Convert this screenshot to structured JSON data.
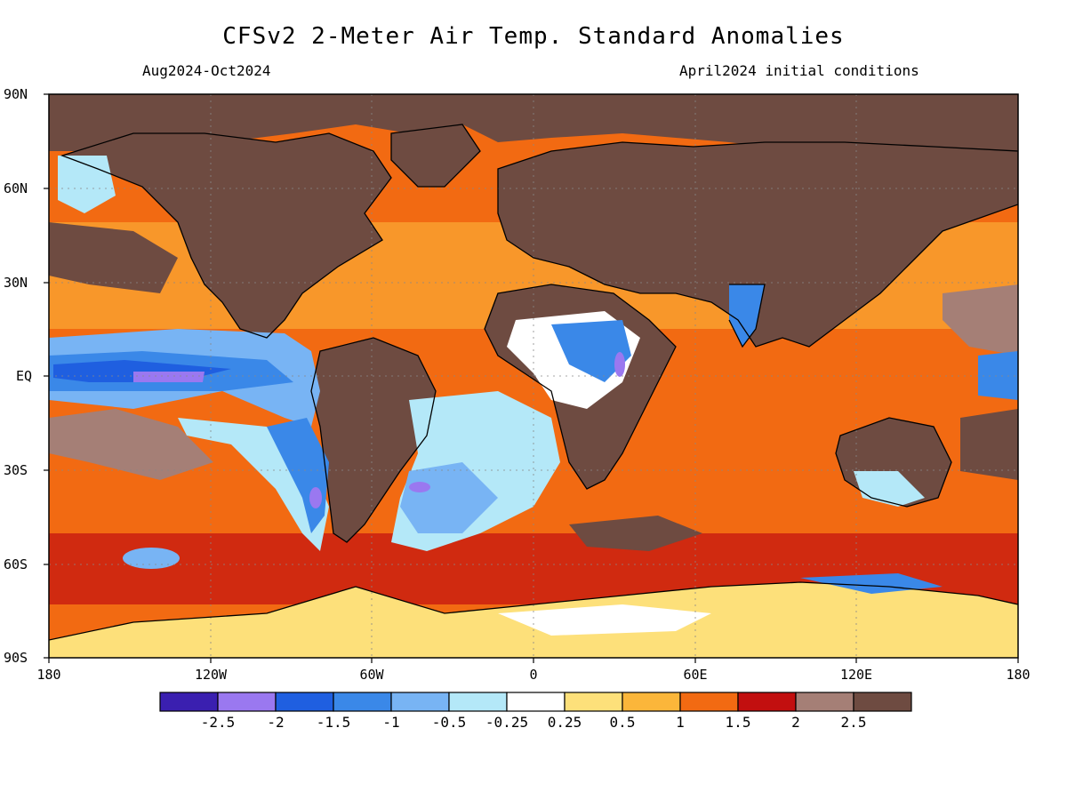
{
  "header": {
    "title": "CFSv2 2-Meter Air Temp. Standard Anomalies",
    "period": "Aug2024-Oct2024",
    "initial_conditions": "April2024 initial conditions"
  },
  "axes": {
    "lat_labels": [
      "90N",
      "60N",
      "30N",
      "EQ",
      "30S",
      "60S",
      "90S"
    ],
    "lon_labels": [
      "180",
      "120W",
      "60W",
      "0",
      "60E",
      "120E",
      "180"
    ]
  },
  "colorbar": {
    "colors": [
      "#3a1fb0",
      "#9a78f0",
      "#1f5fe0",
      "#3a88e8",
      "#78b4f4",
      "#b4e8f8",
      "#ffffff",
      "#fde07a",
      "#fbb63a",
      "#f26a12",
      "#c20f0f",
      "#a57f76",
      "#6e4b41"
    ],
    "labels": [
      "-2.5",
      "-2",
      "-1.5",
      "-1",
      "-0.5",
      "-0.25",
      "0.25",
      "0.5",
      "1",
      "1.5",
      "2",
      "2.5"
    ]
  },
  "palette": {
    "land_extreme": "#6e4b41",
    "very_warm": "#a57f76",
    "warm_2": "#c20f0f",
    "warm_15": "#f26a12",
    "warm_1": "#fbb63a",
    "warm_05": "#fde07a",
    "neutral": "#ffffff",
    "cool_025": "#b4e8f8",
    "cool_05": "#78b4f4",
    "cool_1": "#3a88e8",
    "cool_15": "#1f5fe0",
    "cool_2": "#9a78f0"
  }
}
